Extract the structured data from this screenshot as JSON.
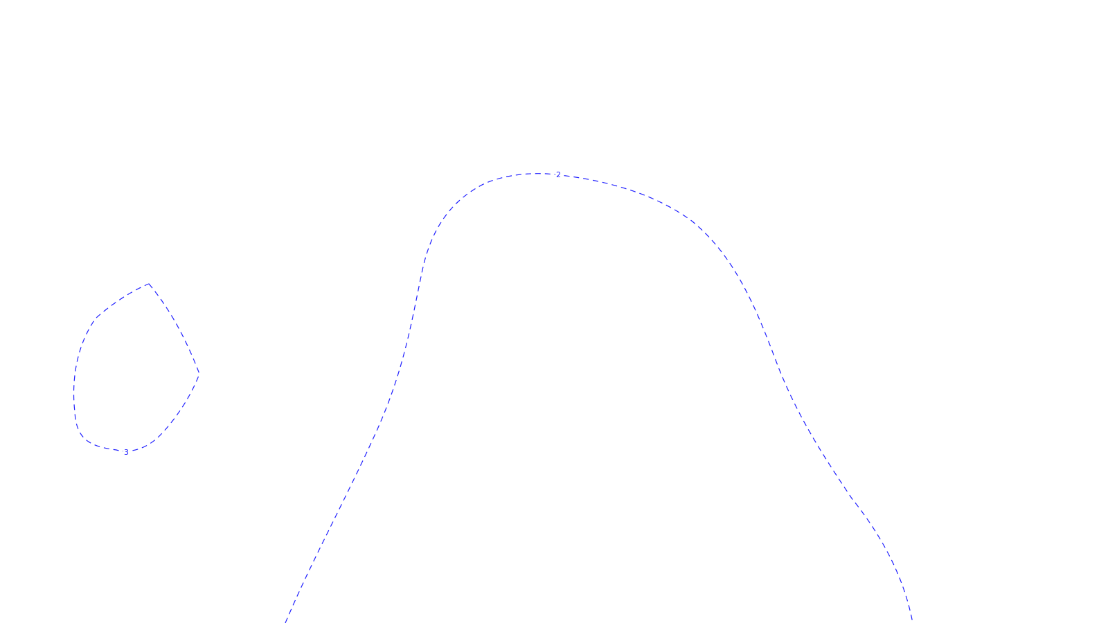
{
  "contour_color": "#1f1fff",
  "contours": [
    {
      "label": "2"
    },
    {
      "label": "3"
    }
  ]
}
